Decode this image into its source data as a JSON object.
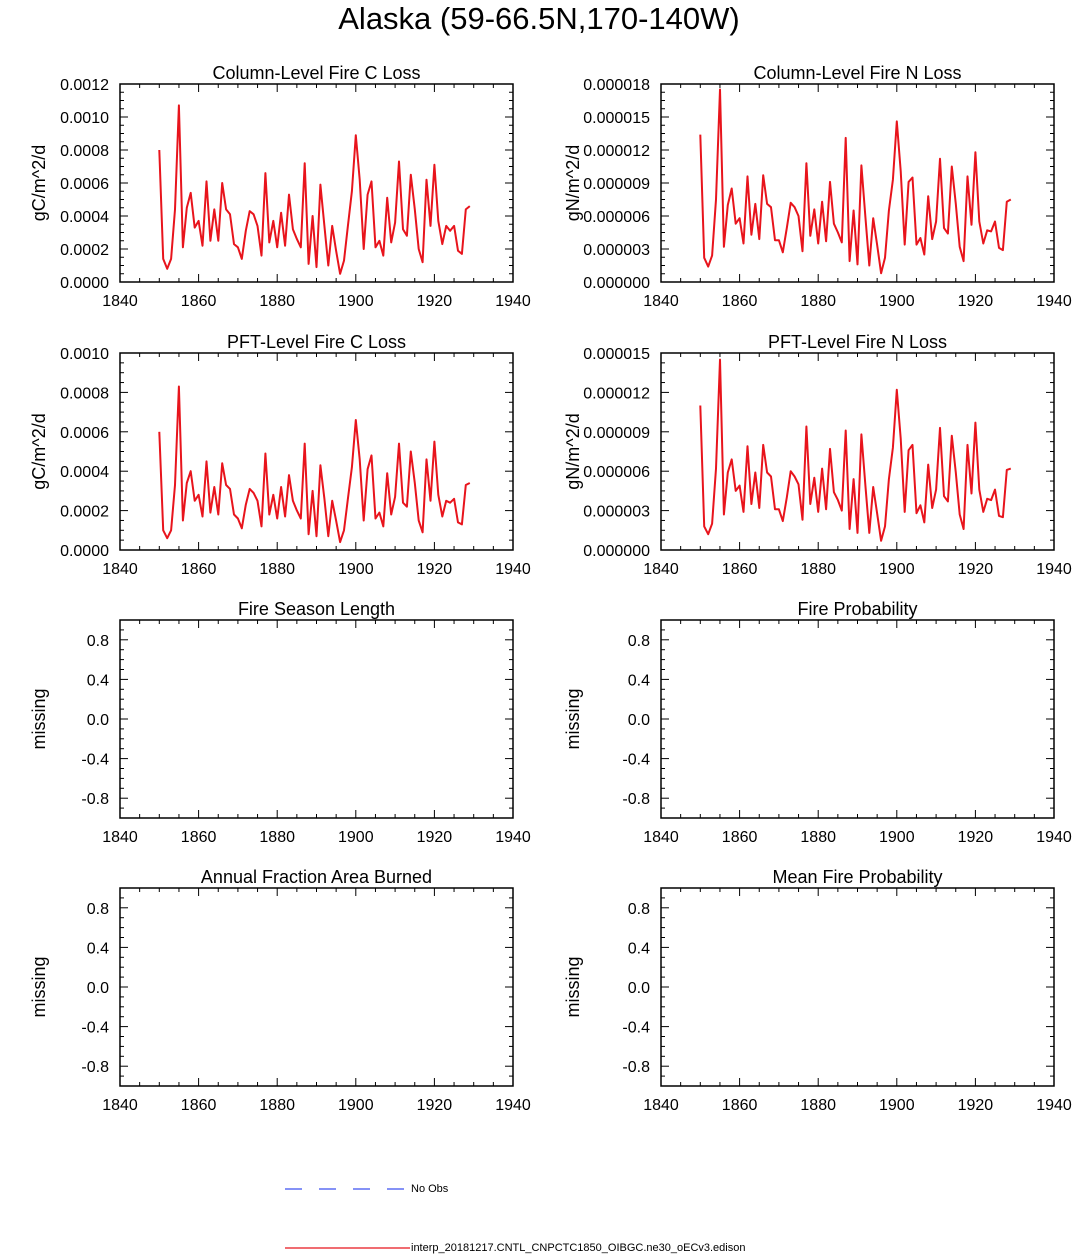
{
  "title": "Alaska (59-66.5N,170-140W)",
  "series_color": "#e8141c",
  "obs_color": "#3c50f0",
  "legend": {
    "no_obs_label": "No Obs",
    "model_label": "interp_20181217.CNTL_CNPCTC1850_OIBGC.ne30_oECv3.edison"
  },
  "chart_data": [
    {
      "type": "line",
      "title": "Column-Level Fire C Loss",
      "ylabel": "gC/m^2/d",
      "xlim": [
        1840,
        1940
      ],
      "ylim": [
        0,
        0.0012
      ],
      "xticks": [
        1840,
        1860,
        1880,
        1900,
        1920,
        1940
      ],
      "yticks": [
        0,
        0.0002,
        0.0004,
        0.0006,
        0.0008,
        0.001,
        0.0012
      ],
      "ytick_labels": [
        "0.0000",
        "0.0002",
        "0.0004",
        "0.0006",
        "0.0008",
        "0.0010",
        "0.0012"
      ],
      "x_start": 1850,
      "series": [
        {
          "name": "interp_20181217.CNTL_CNPCTC1850_OIBGC.ne30_oECv3.edison",
          "values": [
            0.0008,
            0.00014,
            8e-05,
            0.00014,
            0.00044,
            0.00107,
            0.00021,
            0.00045,
            0.00054,
            0.00033,
            0.00037,
            0.00022,
            0.00061,
            0.00025,
            0.00044,
            0.00025,
            0.0006,
            0.00044,
            0.00041,
            0.00023,
            0.00021,
            0.00014,
            0.00031,
            0.00043,
            0.00041,
            0.00034,
            0.00016,
            0.00066,
            0.00024,
            0.00037,
            0.00021,
            0.00042,
            0.00022,
            0.00053,
            0.00032,
            0.00026,
            0.00021,
            0.00072,
            0.00011,
            0.0004,
            9e-05,
            0.00059,
            0.00034,
            0.0001,
            0.00034,
            0.00019,
            5e-05,
            0.00013,
            0.00034,
            0.00055,
            0.00089,
            0.00062,
            0.0002,
            0.00053,
            0.00061,
            0.00021,
            0.00025,
            0.00016,
            0.00051,
            0.00024,
            0.00036,
            0.00073,
            0.00032,
            0.00028,
            0.00065,
            0.00044,
            0.0002,
            0.00012,
            0.00062,
            0.00034,
            0.00071,
            0.00037,
            0.00023,
            0.00034,
            0.00031,
            0.00034,
            0.00019,
            0.00017,
            0.00044,
            0.00046
          ]
        }
      ]
    },
    {
      "type": "line",
      "title": "Column-Level Fire N Loss",
      "ylabel": "gN/m^2/d",
      "xlim": [
        1840,
        1940
      ],
      "ylim": [
        0,
        1.8e-05
      ],
      "xticks": [
        1840,
        1860,
        1880,
        1900,
        1920,
        1940
      ],
      "yticks": [
        0,
        3e-06,
        6e-06,
        9e-06,
        1.2e-05,
        1.5e-05,
        1.8e-05
      ],
      "ytick_labels": [
        "0.000000",
        "0.000003",
        "0.000006",
        "0.000009",
        "0.000012",
        "0.000015",
        "0.000018"
      ],
      "x_start": 1850,
      "series": [
        {
          "name": "interp_20181217.CNTL_CNPCTC1850_OIBGC.ne30_oECv3.edison",
          "values": [
            1.34e-05,
            2.2e-06,
            1.4e-06,
            2.4e-06,
            7.5e-06,
            1.75e-05,
            3.2e-06,
            7e-06,
            8.5e-06,
            5.3e-06,
            5.8e-06,
            3.5e-06,
            9.6e-06,
            4.3e-06,
            7.1e-06,
            3.9e-06,
            9.7e-06,
            7.1e-06,
            6.8e-06,
            3.8e-06,
            3.8e-06,
            2.7e-06,
            4.9e-06,
            7.2e-06,
            6.8e-06,
            6e-06,
            2.8e-06,
            1.08e-05,
            4.2e-06,
            6.6e-06,
            3.5e-06,
            7.3e-06,
            3.7e-06,
            9.1e-06,
            5.3e-06,
            4.5e-06,
            3.6e-06,
            1.31e-05,
            1.9e-06,
            6.5e-06,
            1.6e-06,
            1.06e-05,
            5.9e-06,
            1.5e-06,
            5.8e-06,
            3.4e-06,
            8e-07,
            2.2e-06,
            6.5e-06,
            9.3e-06,
            1.46e-05,
            1.01e-05,
            3.4e-06,
            9.1e-06,
            9.5e-06,
            3.4e-06,
            4e-06,
            2.5e-06,
            7.8e-06,
            3.9e-06,
            5.5e-06,
            1.12e-05,
            4.9e-06,
            4.4e-06,
            1.05e-05,
            7.1e-06,
            3.2e-06,
            1.9e-06,
            9.6e-06,
            5.2e-06,
            1.18e-05,
            5.5e-06,
            3.5e-06,
            4.7e-06,
            4.6e-06,
            5.5e-06,
            3.1e-06,
            2.9e-06,
            7.3e-06,
            7.5e-06
          ]
        }
      ]
    },
    {
      "type": "line",
      "title": "PFT-Level Fire C Loss",
      "ylabel": "gC/m^2/d",
      "xlim": [
        1840,
        1940
      ],
      "ylim": [
        0,
        0.001
      ],
      "xticks": [
        1840,
        1860,
        1880,
        1900,
        1920,
        1940
      ],
      "yticks": [
        0,
        0.0002,
        0.0004,
        0.0006,
        0.0008,
        0.001
      ],
      "ytick_labels": [
        "0.0000",
        "0.0002",
        "0.0004",
        "0.0006",
        "0.0008",
        "0.0010"
      ],
      "x_start": 1850,
      "series": [
        {
          "name": "interp_20181217.CNTL_CNPCTC1850_OIBGC.ne30_oECv3.edison",
          "values": [
            0.0006,
            0.0001,
            6e-05,
            0.0001,
            0.00033,
            0.00083,
            0.00015,
            0.00034,
            0.0004,
            0.00025,
            0.00028,
            0.00017,
            0.00045,
            0.00019,
            0.00032,
            0.00018,
            0.00044,
            0.00033,
            0.00031,
            0.00018,
            0.00016,
            0.00011,
            0.00023,
            0.00031,
            0.00029,
            0.00025,
            0.00012,
            0.00049,
            0.00018,
            0.00028,
            0.00016,
            0.00032,
            0.00017,
            0.00038,
            0.00025,
            0.0002,
            0.00016,
            0.00054,
            8e-05,
            0.0003,
            7e-05,
            0.00043,
            0.00026,
            7e-05,
            0.00025,
            0.00015,
            4e-05,
            0.0001,
            0.00026,
            0.00042,
            0.00066,
            0.00046,
            0.00015,
            0.00041,
            0.00048,
            0.00016,
            0.00019,
            0.00012,
            0.00039,
            0.00018,
            0.00027,
            0.00054,
            0.00024,
            0.00022,
            0.0005,
            0.00034,
            0.00015,
            9e-05,
            0.00046,
            0.00025,
            0.00055,
            0.00028,
            0.00017,
            0.00025,
            0.00024,
            0.00026,
            0.00014,
            0.00013,
            0.00033,
            0.00034
          ]
        }
      ]
    },
    {
      "type": "line",
      "title": "PFT-Level Fire N Loss",
      "ylabel": "gN/m^2/d",
      "xlim": [
        1840,
        1940
      ],
      "ylim": [
        0,
        1.5e-05
      ],
      "xticks": [
        1840,
        1860,
        1880,
        1900,
        1920,
        1940
      ],
      "yticks": [
        0,
        3e-06,
        6e-06,
        9e-06,
        1.2e-05,
        1.5e-05
      ],
      "ytick_labels": [
        "0.000000",
        "0.000003",
        "0.000006",
        "0.000009",
        "0.000012",
        "0.000015"
      ],
      "x_start": 1850,
      "series": [
        {
          "name": "interp_20181217.CNTL_CNPCTC1850_OIBGC.ne30_oECv3.edison",
          "values": [
            1.1e-05,
            1.8e-06,
            1.2e-06,
            2e-06,
            6.2e-06,
            1.45e-05,
            2.7e-06,
            5.9e-06,
            6.9e-06,
            4.5e-06,
            4.9e-06,
            2.9e-06,
            7.9e-06,
            3.5e-06,
            5.9e-06,
            3.2e-06,
            8e-06,
            5.9e-06,
            5.6e-06,
            3.1e-06,
            3.1e-06,
            2.2e-06,
            4e-06,
            6e-06,
            5.6e-06,
            5e-06,
            2.3e-06,
            9.4e-06,
            3.5e-06,
            5.5e-06,
            2.9e-06,
            6.2e-06,
            3.1e-06,
            7.7e-06,
            4.4e-06,
            3.8e-06,
            3e-06,
            9.1e-06,
            1.6e-06,
            5.4e-06,
            1.3e-06,
            8.8e-06,
            4.9e-06,
            1.3e-06,
            4.8e-06,
            2.8e-06,
            7e-07,
            1.8e-06,
            5.4e-06,
            7.8e-06,
            1.22e-05,
            8.5e-06,
            2.9e-06,
            7.6e-06,
            8e-06,
            2.8e-06,
            3.4e-06,
            2.1e-06,
            6.5e-06,
            3.2e-06,
            4.6e-06,
            9.3e-06,
            4.1e-06,
            3.7e-06,
            8.7e-06,
            5.9e-06,
            2.7e-06,
            1.6e-06,
            8e-06,
            4.3e-06,
            9.7e-06,
            4.6e-06,
            2.9e-06,
            3.9e-06,
            3.8e-06,
            4.6e-06,
            2.6e-06,
            2.5e-06,
            6.1e-06,
            6.2e-06
          ]
        }
      ]
    },
    {
      "type": "line",
      "title": "Fire Season Length",
      "ylabel": "missing",
      "xlim": [
        1840,
        1940
      ],
      "ylim": [
        -1,
        1
      ],
      "xticks": [
        1840,
        1860,
        1880,
        1900,
        1920,
        1940
      ],
      "yticks": [
        -0.8,
        -0.4,
        0,
        0.4,
        0.8
      ],
      "ytick_labels": [
        "-0.8",
        "-0.4",
        "0.0",
        "0.4",
        "0.8"
      ],
      "series": []
    },
    {
      "type": "line",
      "title": "Fire Probability",
      "ylabel": "missing",
      "xlim": [
        1840,
        1940
      ],
      "ylim": [
        -1,
        1
      ],
      "xticks": [
        1840,
        1860,
        1880,
        1900,
        1920,
        1940
      ],
      "yticks": [
        -0.8,
        -0.4,
        0,
        0.4,
        0.8
      ],
      "ytick_labels": [
        "-0.8",
        "-0.4",
        "0.0",
        "0.4",
        "0.8"
      ],
      "series": []
    },
    {
      "type": "line",
      "title": "Annual Fraction Area Burned",
      "ylabel": "missing",
      "xlim": [
        1840,
        1940
      ],
      "ylim": [
        -1,
        1
      ],
      "xticks": [
        1840,
        1860,
        1880,
        1900,
        1920,
        1940
      ],
      "yticks": [
        -0.8,
        -0.4,
        0,
        0.4,
        0.8
      ],
      "ytick_labels": [
        "-0.8",
        "-0.4",
        "0.0",
        "0.4",
        "0.8"
      ],
      "series": []
    },
    {
      "type": "line",
      "title": "Mean Fire Probability",
      "ylabel": "missing",
      "xlim": [
        1840,
        1940
      ],
      "ylim": [
        -1,
        1
      ],
      "xticks": [
        1840,
        1860,
        1880,
        1900,
        1920,
        1940
      ],
      "yticks": [
        -0.8,
        -0.4,
        0,
        0.4,
        0.8
      ],
      "ytick_labels": [
        "-0.8",
        "-0.4",
        "0.0",
        "0.4",
        "0.8"
      ],
      "series": []
    }
  ]
}
